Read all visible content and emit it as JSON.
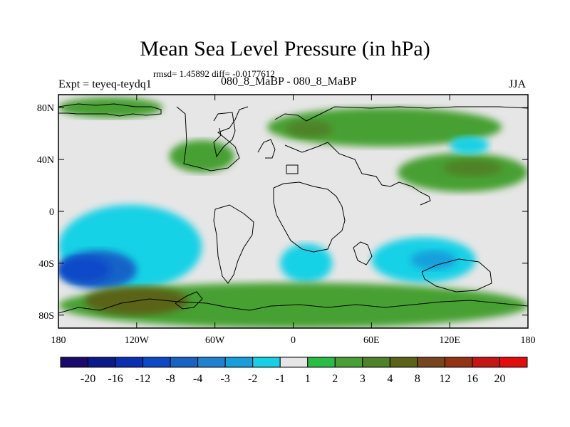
{
  "header": {
    "title": "Mean Sea Level Pressure (in hPa)",
    "stats": "rmsd= 1.45892  diff= -0.0177612",
    "left_label": "Expt = teyeq-teydq1",
    "center_label": "080_8_MaBP - 080_8_MaBP",
    "right_label": "JJA"
  },
  "chart_data": {
    "type": "heatmap",
    "title": "Mean Sea Level Pressure (in hPa)",
    "projection": "cylindrical-equidistant",
    "xlim": [
      -180,
      180
    ],
    "ylim": [
      -90,
      90
    ],
    "x_ticks": [
      {
        "value": -180,
        "label": "180"
      },
      {
        "value": -120,
        "label": "120W"
      },
      {
        "value": -60,
        "label": "60W"
      },
      {
        "value": 0,
        "label": "0"
      },
      {
        "value": 60,
        "label": "60E"
      },
      {
        "value": 120,
        "label": "120E"
      },
      {
        "value": 180,
        "label": "180"
      }
    ],
    "y_ticks": [
      {
        "value": 80,
        "label": "80N"
      },
      {
        "value": 40,
        "label": "40N"
      },
      {
        "value": 0,
        "label": "0"
      },
      {
        "value": -40,
        "label": "40S"
      },
      {
        "value": -80,
        "label": "80S"
      }
    ],
    "colorbar": {
      "levels": [
        "-20",
        "-16",
        "-12",
        "-8",
        "-4",
        "-3",
        "-2",
        "-1",
        "1",
        "2",
        "3",
        "4",
        "8",
        "12",
        "16",
        "20"
      ],
      "colors": [
        "#1a0a6e",
        "#0a1a8c",
        "#0a2eb4",
        "#0a4ac8",
        "#1464c8",
        "#1e82d2",
        "#14a0dc",
        "#14d2e6",
        "#e6e6e6",
        "#28be46",
        "#46a032",
        "#508228",
        "#5a6414",
        "#78461e",
        "#963214",
        "#c81414",
        "#e60a0a"
      ]
    },
    "fields": [
      {
        "level": "1",
        "region": "background",
        "lon": [
          -180,
          180
        ],
        "lat": [
          -90,
          90
        ]
      },
      {
        "level": "2",
        "region": "Arctic North America",
        "lon": [
          -180,
          -100
        ],
        "lat": [
          72,
          88
        ]
      },
      {
        "level": "2",
        "region": "North Pacific",
        "lon": [
          -95,
          -45
        ],
        "lat": [
          30,
          55
        ]
      },
      {
        "level": "2",
        "region": "Eurasia",
        "lon": [
          -20,
          160
        ],
        "lat": [
          50,
          80
        ]
      },
      {
        "level": "3",
        "region": "Eurasia core",
        "lon": [
          -5,
          30
        ],
        "lat": [
          57,
          70
        ]
      },
      {
        "level": "2",
        "region": "Asia",
        "lon": [
          80,
          180
        ],
        "lat": [
          15,
          45
        ]
      },
      {
        "level": "3",
        "region": "Asia core",
        "lon": [
          115,
          160
        ],
        "lat": [
          27,
          40
        ]
      },
      {
        "level": "-1",
        "region": "NW Pacific",
        "lon": [
          120,
          150
        ],
        "lat": [
          44,
          58
        ]
      },
      {
        "level": "-1",
        "region": "South Pacific",
        "lon": [
          -180,
          -70
        ],
        "lat": [
          -60,
          5
        ]
      },
      {
        "level": "-4",
        "region": "South Pacific core",
        "lon": [
          -180,
          -120
        ],
        "lat": [
          -60,
          -30
        ]
      },
      {
        "level": "-8",
        "region": "South Pacific center",
        "lon": [
          -180,
          -140
        ],
        "lat": [
          -55,
          -35
        ]
      },
      {
        "level": "-1",
        "region": "South Atlantic",
        "lon": [
          -10,
          30
        ],
        "lat": [
          -55,
          -25
        ]
      },
      {
        "level": "-1",
        "region": "Indian Ocean",
        "lon": [
          60,
          140
        ],
        "lat": [
          -55,
          -20
        ]
      },
      {
        "level": "-2",
        "region": "Indian Ocean core",
        "lon": [
          90,
          125
        ],
        "lat": [
          -45,
          -30
        ]
      },
      {
        "level": "2",
        "region": "Southern Ocean",
        "lon": [
          -180,
          180
        ],
        "lat": [
          -90,
          -55
        ]
      },
      {
        "level": "4",
        "region": "Southern Ocean core",
        "lon": [
          -160,
          -80
        ],
        "lat": [
          -80,
          -58
        ]
      }
    ]
  }
}
